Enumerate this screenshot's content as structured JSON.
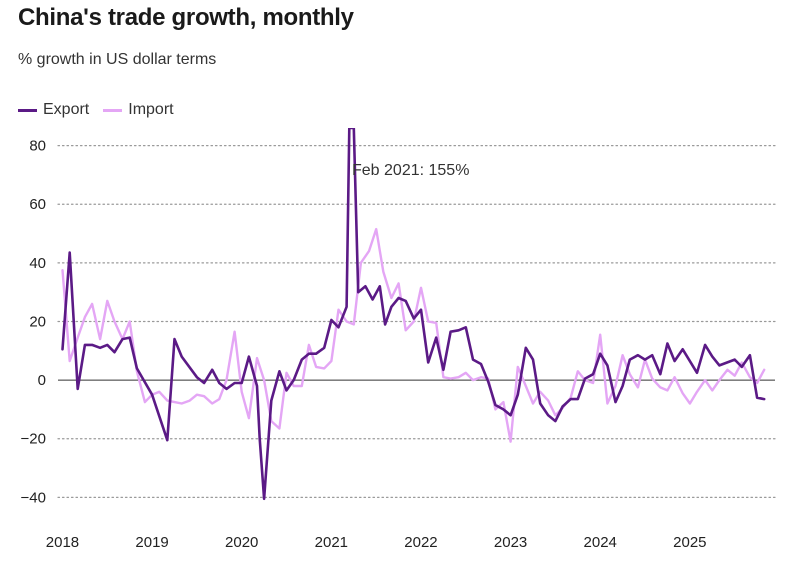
{
  "chart_data": {
    "type": "line",
    "title": "China's trade growth, monthly",
    "subtitle": "% growth in US dollar terms",
    "xlabel": "",
    "ylabel": "",
    "ylim": [
      -45,
      86
    ],
    "yticks": [
      -40,
      -20,
      0,
      20,
      40,
      60,
      80
    ],
    "ytick_labels": [
      "−40",
      "−20",
      "0",
      "20",
      "40",
      "60",
      "80"
    ],
    "xlim": [
      2017.95,
      2025.95
    ],
    "xticks": [
      2018,
      2019,
      2020,
      2021,
      2022,
      2023,
      2024,
      2025
    ],
    "xtick_labels": [
      "2018",
      "2019",
      "2020",
      "2021",
      "2022",
      "2023",
      "2024",
      "2025"
    ],
    "annotation": "Feb 2021: 155%",
    "series": [
      {
        "name": "Export",
        "color": "#5b1a86",
        "points": [
          [
            2018.0,
            10.5
          ],
          [
            2018.08,
            43.5
          ],
          [
            2018.17,
            -3
          ],
          [
            2018.25,
            12
          ],
          [
            2018.33,
            12
          ],
          [
            2018.42,
            11
          ],
          [
            2018.5,
            12
          ],
          [
            2018.58,
            9.5
          ],
          [
            2018.67,
            14
          ],
          [
            2018.75,
            14.5
          ],
          [
            2018.83,
            4
          ],
          [
            2019.0,
            -5
          ],
          [
            2019.17,
            -20.5
          ],
          [
            2019.25,
            14
          ],
          [
            2019.33,
            8
          ],
          [
            2019.5,
            1
          ],
          [
            2019.58,
            -1
          ],
          [
            2019.67,
            3.5
          ],
          [
            2019.75,
            -1
          ],
          [
            2019.83,
            -3
          ],
          [
            2019.92,
            -1
          ],
          [
            2020.0,
            -1
          ],
          [
            2020.08,
            8
          ],
          [
            2020.17,
            -2
          ],
          [
            2020.2,
            -20
          ],
          [
            2020.25,
            -40.5
          ],
          [
            2020.33,
            -7
          ],
          [
            2020.42,
            3
          ],
          [
            2020.5,
            -3.5
          ],
          [
            2020.58,
            0
          ],
          [
            2020.67,
            7
          ],
          [
            2020.75,
            9
          ],
          [
            2020.83,
            9
          ],
          [
            2020.92,
            11
          ],
          [
            2021.0,
            20.5
          ],
          [
            2021.08,
            18
          ],
          [
            2021.17,
            25
          ],
          [
            2021.2,
            86
          ],
          [
            2021.25,
            86
          ],
          [
            2021.3,
            30
          ],
          [
            2021.38,
            32
          ],
          [
            2021.46,
            27.5
          ],
          [
            2021.54,
            32
          ],
          [
            2021.6,
            19
          ],
          [
            2021.67,
            25
          ],
          [
            2021.75,
            28
          ],
          [
            2021.83,
            27
          ],
          [
            2021.92,
            21
          ],
          [
            2022.0,
            24
          ],
          [
            2022.08,
            6
          ],
          [
            2022.17,
            14.5
          ],
          [
            2022.25,
            3.5
          ],
          [
            2022.33,
            16.5
          ],
          [
            2022.42,
            17
          ],
          [
            2022.5,
            18
          ],
          [
            2022.58,
            7
          ],
          [
            2022.67,
            5.5
          ],
          [
            2022.75,
            -0.5
          ],
          [
            2022.83,
            -8.5
          ],
          [
            2022.92,
            -10
          ],
          [
            2023.0,
            -12
          ],
          [
            2023.08,
            -5
          ],
          [
            2023.17,
            11
          ],
          [
            2023.25,
            7
          ],
          [
            2023.33,
            -8
          ],
          [
            2023.42,
            -12
          ],
          [
            2023.5,
            -14
          ],
          [
            2023.58,
            -9
          ],
          [
            2023.67,
            -6.5
          ],
          [
            2023.75,
            -6.5
          ],
          [
            2023.83,
            0.5
          ],
          [
            2023.92,
            2
          ],
          [
            2024.0,
            9
          ],
          [
            2024.08,
            5
          ],
          [
            2024.17,
            -7.5
          ],
          [
            2024.25,
            -2
          ],
          [
            2024.33,
            7
          ],
          [
            2024.42,
            8.5
          ],
          [
            2024.5,
            7
          ],
          [
            2024.58,
            8.5
          ],
          [
            2024.67,
            2
          ],
          [
            2024.75,
            12.5
          ],
          [
            2024.83,
            6.5
          ],
          [
            2024.92,
            10.5
          ],
          [
            2025.08,
            2.5
          ],
          [
            2025.17,
            12
          ],
          [
            2025.25,
            8
          ],
          [
            2025.33,
            5
          ],
          [
            2025.5,
            7
          ],
          [
            2025.58,
            4.5
          ],
          [
            2025.67,
            8.5
          ],
          [
            2025.75,
            -6
          ],
          [
            2025.83,
            -6.5
          ]
        ]
      },
      {
        "name": "Import",
        "color": "#e4a6f5",
        "points": [
          [
            2018.0,
            37.5
          ],
          [
            2018.08,
            6.5
          ],
          [
            2018.17,
            14.5
          ],
          [
            2018.25,
            21.5
          ],
          [
            2018.33,
            26
          ],
          [
            2018.42,
            14
          ],
          [
            2018.5,
            27
          ],
          [
            2018.58,
            20
          ],
          [
            2018.67,
            14
          ],
          [
            2018.75,
            20
          ],
          [
            2018.83,
            3
          ],
          [
            2018.92,
            -7.5
          ],
          [
            2019.0,
            -5
          ],
          [
            2019.08,
            -4
          ],
          [
            2019.17,
            -7
          ],
          [
            2019.25,
            -7.5
          ],
          [
            2019.33,
            -8
          ],
          [
            2019.42,
            -7
          ],
          [
            2019.5,
            -5
          ],
          [
            2019.58,
            -5.5
          ],
          [
            2019.67,
            -8
          ],
          [
            2019.75,
            -6.5
          ],
          [
            2019.83,
            0
          ],
          [
            2019.92,
            16.5
          ],
          [
            2020.0,
            -4
          ],
          [
            2020.08,
            -13
          ],
          [
            2020.17,
            7.5
          ],
          [
            2020.25,
            0
          ],
          [
            2020.33,
            -14
          ],
          [
            2020.42,
            -16.5
          ],
          [
            2020.5,
            2.5
          ],
          [
            2020.58,
            -2
          ],
          [
            2020.67,
            -2
          ],
          [
            2020.75,
            12
          ],
          [
            2020.83,
            4.5
          ],
          [
            2020.92,
            4
          ],
          [
            2021.0,
            6.5
          ],
          [
            2021.08,
            24
          ],
          [
            2021.17,
            20
          ],
          [
            2021.25,
            19
          ],
          [
            2021.33,
            40
          ],
          [
            2021.42,
            44
          ],
          [
            2021.5,
            51.5
          ],
          [
            2021.58,
            37
          ],
          [
            2021.67,
            28
          ],
          [
            2021.75,
            33
          ],
          [
            2021.83,
            17
          ],
          [
            2021.92,
            20
          ],
          [
            2022.0,
            31.5
          ],
          [
            2022.08,
            20
          ],
          [
            2022.17,
            19.5
          ],
          [
            2022.25,
            1
          ],
          [
            2022.33,
            0.5
          ],
          [
            2022.42,
            1
          ],
          [
            2022.5,
            2.5
          ],
          [
            2022.58,
            0
          ],
          [
            2022.67,
            1
          ],
          [
            2022.75,
            0.5
          ],
          [
            2022.83,
            -10
          ],
          [
            2022.92,
            -7.5
          ],
          [
            2023.0,
            -21
          ],
          [
            2023.08,
            4.5
          ],
          [
            2023.17,
            -2
          ],
          [
            2023.25,
            -8
          ],
          [
            2023.33,
            -4
          ],
          [
            2023.42,
            -7
          ],
          [
            2023.5,
            -12
          ],
          [
            2023.58,
            -9.5
          ],
          [
            2023.67,
            -6
          ],
          [
            2023.75,
            3
          ],
          [
            2023.83,
            0
          ],
          [
            2023.92,
            -1
          ],
          [
            2024.0,
            15.5
          ],
          [
            2024.08,
            -8
          ],
          [
            2024.17,
            -2
          ],
          [
            2024.25,
            8.5
          ],
          [
            2024.33,
            2
          ],
          [
            2024.42,
            -2.5
          ],
          [
            2024.5,
            7
          ],
          [
            2024.58,
            0.5
          ],
          [
            2024.67,
            -2.5
          ],
          [
            2024.75,
            -3.5
          ],
          [
            2024.83,
            1
          ],
          [
            2024.92,
            -4.5
          ],
          [
            2025.0,
            -8
          ],
          [
            2025.08,
            -4
          ],
          [
            2025.17,
            0
          ],
          [
            2025.25,
            -3.5
          ],
          [
            2025.33,
            0
          ],
          [
            2025.42,
            3.5
          ],
          [
            2025.5,
            1.5
          ],
          [
            2025.58,
            6
          ],
          [
            2025.67,
            1
          ],
          [
            2025.75,
            -1
          ],
          [
            2025.83,
            3.5
          ]
        ]
      }
    ],
    "grid": true,
    "legend_position": "top-left"
  }
}
